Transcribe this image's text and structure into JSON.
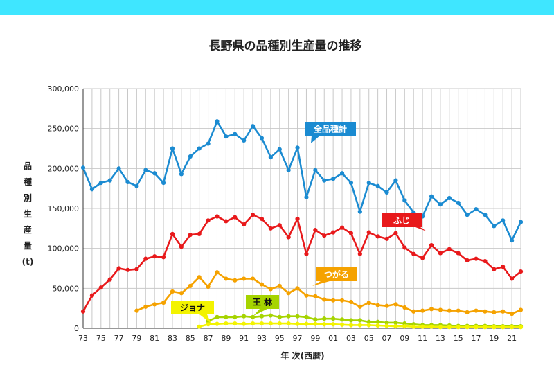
{
  "header": {
    "accent_color": "#3fe6ff"
  },
  "chart_data": {
    "type": "line",
    "title": "長野県の品種別生産量の推移",
    "xlabel": "年 次(西暦)",
    "ylabel": "品種別生産量(t)",
    "ylim": [
      0,
      300000
    ],
    "yticks": [
      0,
      50000,
      100000,
      150000,
      200000,
      250000,
      300000
    ],
    "ytick_labels": [
      "0",
      "50,000",
      "100,000",
      "150,000",
      "200,000",
      "250,000",
      "300,000"
    ],
    "xticks": [
      "73",
      "75",
      "77",
      "79",
      "81",
      "83",
      "85",
      "87",
      "89",
      "91",
      "93",
      "95",
      "97",
      "99",
      "01",
      "03",
      "05",
      "07",
      "09",
      "11",
      "13",
      "15",
      "17",
      "19",
      "21"
    ],
    "x_start": 1973,
    "x_end": 2022,
    "grid": true,
    "series": [
      {
        "name": "全品種計",
        "color": "#1b8bd1",
        "x_start": 1973,
        "values": [
          201000,
          174000,
          182000,
          185000,
          200000,
          183000,
          178000,
          198000,
          194000,
          182000,
          225000,
          193000,
          215000,
          225000,
          231000,
          259000,
          240000,
          243000,
          235000,
          253000,
          238000,
          214000,
          224000,
          198000,
          226000,
          164000,
          198000,
          185000,
          187000,
          194000,
          182000,
          146000,
          182000,
          178000,
          170000,
          185000,
          160000,
          145000,
          140000,
          165000,
          155000,
          163000,
          157000,
          142000,
          149000,
          142000,
          128000,
          135000,
          110000,
          133000
        ]
      },
      {
        "name": "ふじ",
        "color": "#e8191b",
        "x_start": 1973,
        "values": [
          21000,
          41000,
          51000,
          61000,
          75000,
          73000,
          74000,
          87000,
          90000,
          89000,
          118000,
          102000,
          117000,
          118000,
          135000,
          140000,
          134000,
          139000,
          130000,
          142000,
          137000,
          125000,
          129000,
          114000,
          137000,
          93000,
          123000,
          116000,
          120000,
          126000,
          119000,
          93000,
          120000,
          115000,
          112000,
          119000,
          101000,
          93000,
          88000,
          104000,
          94000,
          99000,
          94000,
          85000,
          87000,
          84000,
          74000,
          77000,
          62000,
          71000
        ]
      },
      {
        "name": "つがる",
        "color": "#f5a200",
        "x_start": 1979,
        "values": [
          22000,
          27000,
          30000,
          32000,
          46000,
          44000,
          53000,
          64000,
          52000,
          70000,
          62000,
          60000,
          62000,
          62000,
          55000,
          49000,
          53000,
          44000,
          50000,
          41000,
          40000,
          36000,
          35000,
          35000,
          33000,
          27000,
          32000,
          29000,
          28000,
          30000,
          26000,
          21000,
          22000,
          24000,
          23000,
          22000,
          22000,
          20000,
          22000,
          21000,
          20000,
          21000,
          18000,
          23000
        ]
      },
      {
        "name": "王林",
        "color": "#a6d400",
        "x_start": 1987,
        "values": [
          9000,
          14000,
          14000,
          14000,
          15000,
          14000,
          15000,
          16000,
          14000,
          15000,
          15000,
          14000,
          11000,
          12000,
          12000,
          11000,
          10000,
          10000,
          8000,
          8000,
          7000,
          7000,
          6000,
          5000,
          4000,
          4000,
          4000,
          3500,
          3000,
          3000,
          3000,
          3000,
          2500,
          2500,
          2500,
          2500
        ]
      },
      {
        "name": "ジョナ",
        "color": "#f3f300",
        "x_start": 1986,
        "values": [
          2000,
          5000,
          5500,
          6000,
          6000,
          5500,
          6000,
          6000,
          6000,
          6000,
          6000,
          5500,
          5500,
          5500,
          5000,
          5000,
          4500,
          4000,
          4000,
          4000,
          3500,
          3000,
          2500,
          2500,
          2000,
          2000,
          2000,
          1500,
          1500,
          1500,
          1500,
          1500,
          1500,
          1500,
          1500,
          1500,
          1500
        ]
      }
    ],
    "callouts": [
      {
        "label": "全品種計",
        "bg": "#1b8bd1",
        "fg": "#ffffff"
      },
      {
        "label": "ふじ",
        "bg": "#e8191b",
        "fg": "#ffffff"
      },
      {
        "label": "つがる",
        "bg": "#f5a200",
        "fg": "#ffffff"
      },
      {
        "label": "王 林",
        "bg": "#a6d400",
        "fg": "#111111"
      },
      {
        "label": "ジョナ",
        "bg": "#f3f300",
        "fg": "#111111"
      }
    ]
  }
}
